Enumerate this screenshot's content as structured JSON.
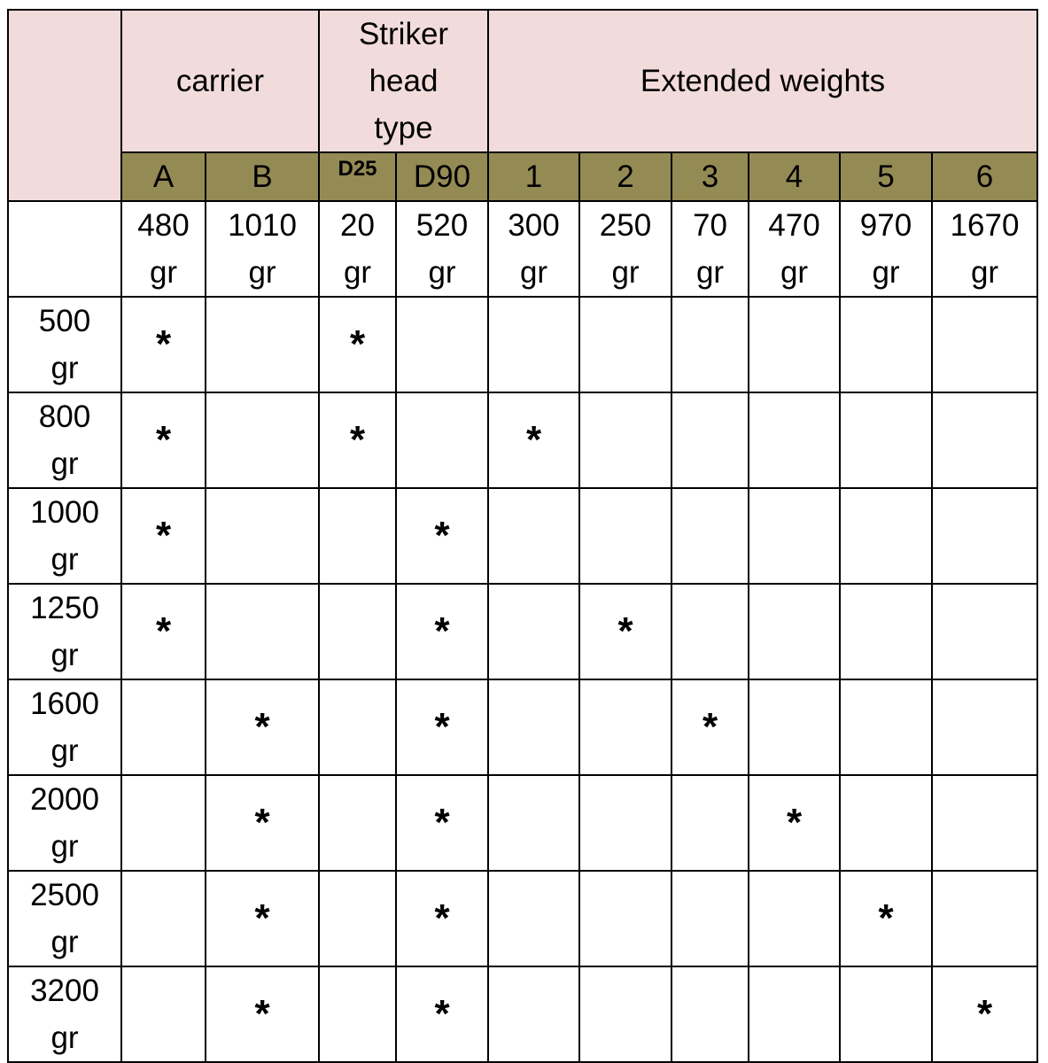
{
  "header": {
    "groups": [
      "",
      "carrier",
      "Striker\nhead\ntype",
      "Extended weights"
    ],
    "subheaders": [
      "A",
      "B",
      "D25",
      "D90",
      "1",
      "2",
      "3",
      "4",
      "5",
      "6"
    ],
    "weights": [
      "480\ngr",
      "1010\ngr",
      "20\ngr",
      "520\ngr",
      "300\ngr",
      "250\ngr",
      "70\ngr",
      "470\ngr",
      "970\ngr",
      "1670\ngr"
    ]
  },
  "colors": {
    "header_pink": "#f2dcdb",
    "subheader_olive": "#948a54"
  },
  "rows": [
    {
      "label": "500\ngr",
      "cells": [
        "*",
        "",
        "*",
        "",
        "",
        "",
        "",
        "",
        "",
        ""
      ]
    },
    {
      "label": "800\ngr",
      "cells": [
        "*",
        "",
        "*",
        "",
        "*",
        "",
        "",
        "",
        "",
        ""
      ]
    },
    {
      "label": "1000\ngr",
      "cells": [
        "*",
        "",
        "",
        "*",
        "",
        "",
        "",
        "",
        "",
        ""
      ]
    },
    {
      "label": "1250\ngr",
      "cells": [
        "*",
        "",
        "",
        "*",
        "",
        "*",
        "",
        "",
        "",
        ""
      ]
    },
    {
      "label": "1600\ngr",
      "cells": [
        "",
        "*",
        "",
        "*",
        "",
        "",
        "*",
        "",
        "",
        ""
      ]
    },
    {
      "label": "2000\ngr",
      "cells": [
        "",
        "*",
        "",
        "*",
        "",
        "",
        "",
        "*",
        "",
        ""
      ]
    },
    {
      "label": "2500\ngr",
      "cells": [
        "",
        "*",
        "",
        "*",
        "",
        "",
        "",
        "",
        "*",
        ""
      ]
    },
    {
      "label": "3200\ngr",
      "cells": [
        "",
        "*",
        "",
        "*",
        "",
        "",
        "",
        "",
        "",
        "*"
      ]
    }
  ]
}
